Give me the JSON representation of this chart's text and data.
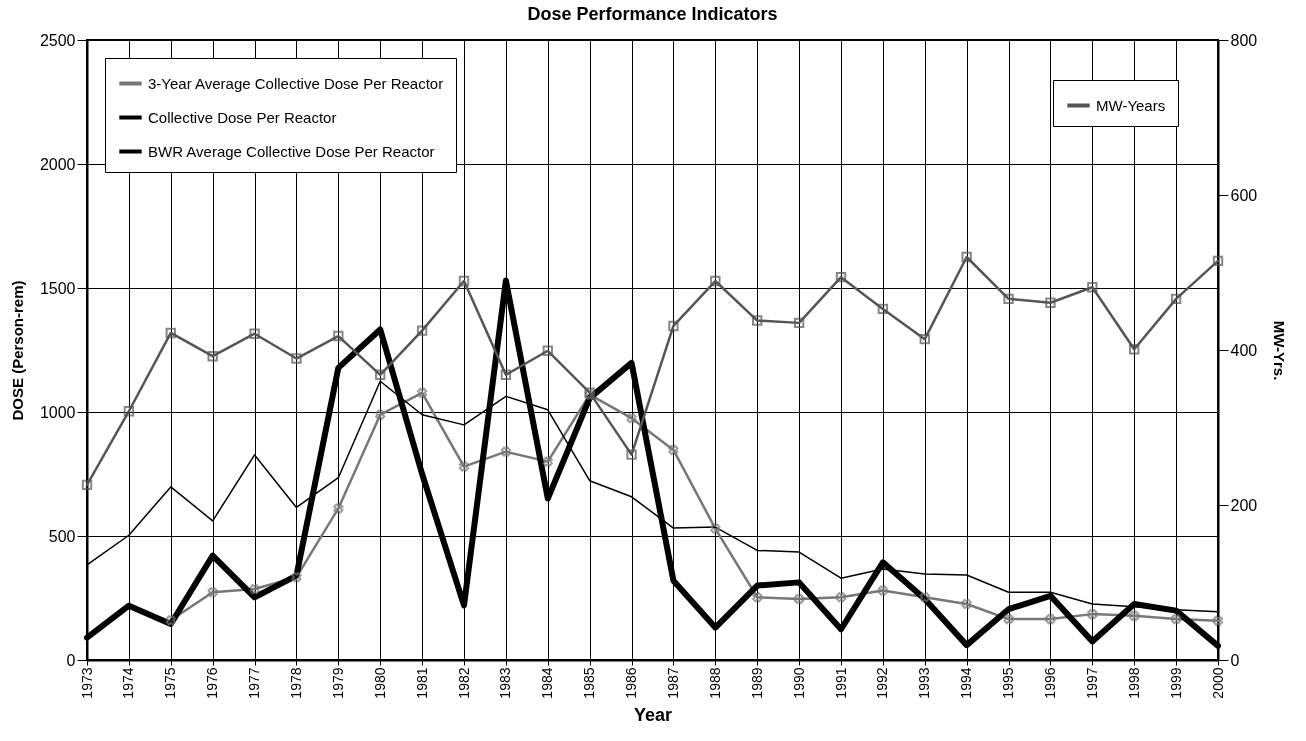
{
  "chart_data": {
    "type": "line",
    "title": "Dose Performance Indicators",
    "xlabel": "Year",
    "ylabel": "DOSE (Person-rem)",
    "y2label": "MW-Yrs.",
    "x": [
      1973,
      1974,
      1975,
      1976,
      1977,
      1978,
      1979,
      1980,
      1981,
      1982,
      1983,
      1984,
      1985,
      1986,
      1987,
      1988,
      1989,
      1990,
      1991,
      1992,
      1993,
      1994,
      1995,
      1996,
      1997,
      1998,
      1999,
      2000
    ],
    "xlim": [
      1973,
      2000
    ],
    "xticks": [
      1973,
      1974,
      1975,
      1976,
      1977,
      1978,
      1979,
      1980,
      1981,
      1982,
      1983,
      1984,
      1985,
      1986,
      1987,
      1988,
      1989,
      1990,
      1991,
      1992,
      1993,
      1994,
      1995,
      1996,
      1997,
      1998,
      1999,
      2000
    ],
    "ylim": [
      0,
      2500
    ],
    "yticks": [
      0,
      500,
      1000,
      1500,
      2000,
      2500
    ],
    "y2lim": [
      0,
      800
    ],
    "y2ticks": [
      0,
      200,
      400,
      600,
      800
    ],
    "grid": true,
    "legend": "top left",
    "series": [
      {
        "name": "3-Year Average Collective Dose Per Reactor",
        "color": "#777777",
        "marker": "cross",
        "values": [
          null,
          null,
          160,
          273,
          286,
          334,
          611,
          989,
          1077,
          780,
          840,
          800,
          1070,
          975,
          847,
          530,
          253,
          246,
          253,
          280,
          253,
          226,
          165,
          165,
          185,
          178,
          165,
          158
        ]
      },
      {
        "name": "Collective Dose Per Reactor",
        "color": "#000000",
        "values": [
          90,
          219,
          145,
          421,
          253,
          340,
          1178,
          1333,
          750,
          220,
          1530,
          651,
          1056,
          1198,
          320,
          131,
          300,
          313,
          124,
          394,
          246,
          60,
          205,
          259,
          75,
          226,
          199,
          57
        ]
      },
      {
        "name": "BWR Average Collective Dose Per Reactor",
        "color": "#000000",
        "values": [
          384,
          503,
          698,
          561,
          827,
          615,
          735,
          1124,
          989,
          948,
          1063,
          1009,
          723,
          658,
          532,
          536,
          442,
          435,
          330,
          367,
          347,
          343,
          273,
          273,
          226,
          215,
          203,
          195
        ]
      },
      {
        "name": "MW-Years",
        "color": "#555555",
        "marker": "square",
        "axis": "y2",
        "values": [
          226,
          321,
          422,
          392,
          421,
          389,
          418,
          368,
          425,
          489,
          368,
          399,
          345,
          265,
          431,
          489,
          438,
          435,
          494,
          453,
          414,
          520,
          466,
          461,
          481,
          401,
          466,
          515
        ]
      }
    ]
  }
}
